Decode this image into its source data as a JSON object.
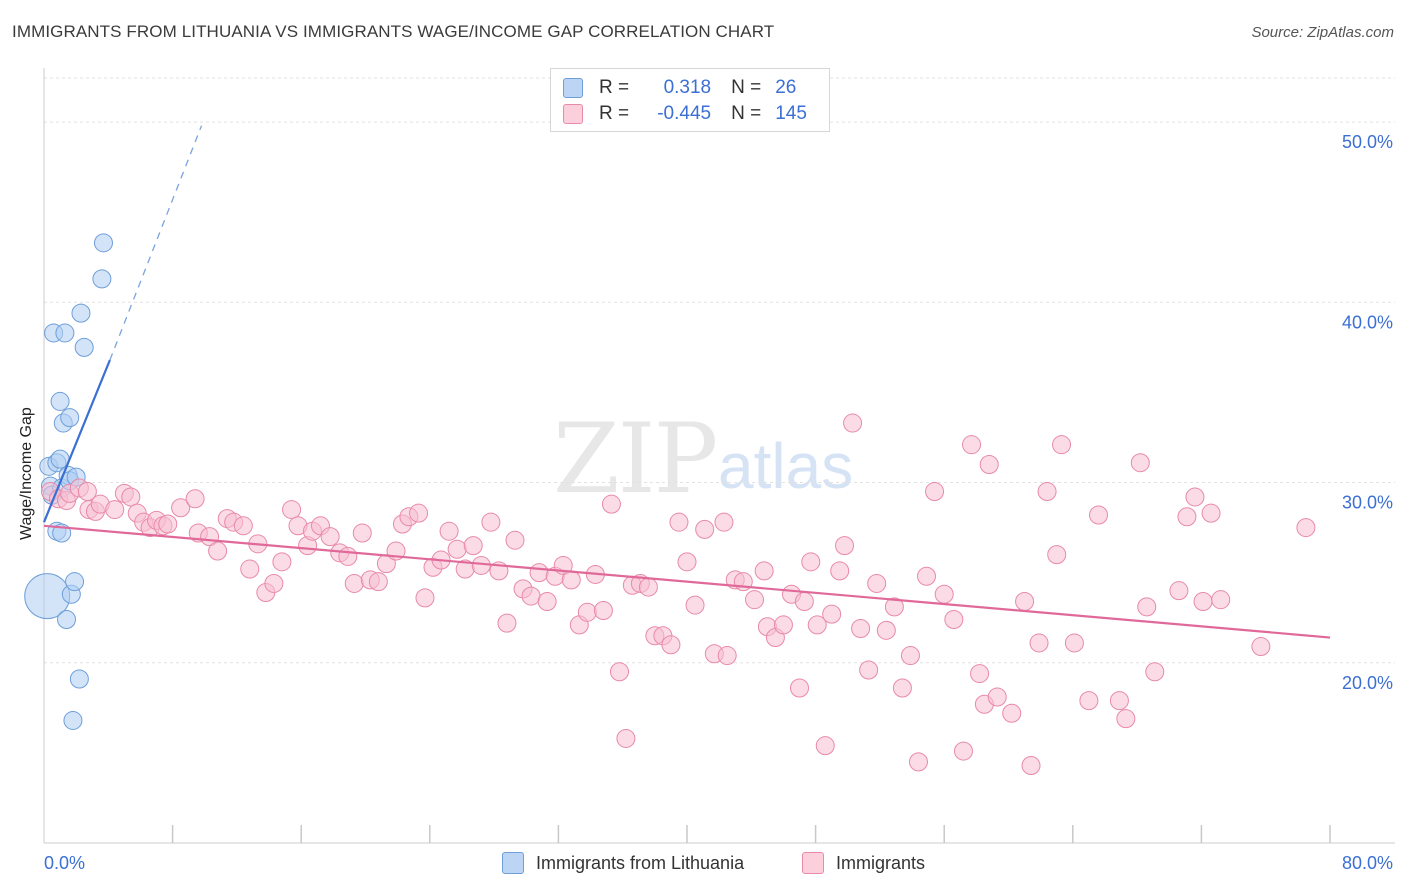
{
  "title": "IMMIGRANTS FROM LITHUANIA VS IMMIGRANTS WAGE/INCOME GAP CORRELATION CHART",
  "source": "Source: ZipAtlas.com",
  "watermark": {
    "zip": "ZIP",
    "atlas": "atlas"
  },
  "legend": {
    "r_label": "R =",
    "n_label": "N =",
    "series": [
      {
        "name": "Immigrants from Lithuania",
        "r": "0.318",
        "n": "26",
        "fill": "#aecdf3",
        "stroke": "#6e9fd9"
      },
      {
        "name": "Immigrants",
        "r": "-0.445",
        "n": "145",
        "fill": "#f8c0d1",
        "stroke": "#e88aa8"
      }
    ]
  },
  "chart_data": {
    "type": "scatter",
    "title": "IMMIGRANTS FROM LITHUANIA VS IMMIGRANTS WAGE/INCOME GAP CORRELATION CHART",
    "xlabel": "",
    "ylabel": "Wage/Income Gap",
    "xlim": [
      0,
      80
    ],
    "ylim": [
      10,
      53
    ],
    "x_tick_labels": [
      "0.0%",
      "80.0%"
    ],
    "y_ticks": [
      20,
      30,
      40,
      50
    ],
    "y_tick_labels": [
      "20.0%",
      "30.0%",
      "40.0%",
      "50.0%"
    ],
    "colors": {
      "blue": "#3b6fd4",
      "pink": "#e0699a",
      "axis_text": "#3b6fd4",
      "grid": "#e2e2e2"
    },
    "series": [
      {
        "name": "Immigrants from Lithuania",
        "color": "#6e9fd9",
        "fill": "#aecdf3",
        "points": [
          [
            0.2,
            23.7,
            2.5
          ],
          [
            0.3,
            30.9,
            1
          ],
          [
            0.4,
            29.8,
            1
          ],
          [
            0.5,
            29.3,
            1
          ],
          [
            0.6,
            38.3,
            1
          ],
          [
            0.8,
            31.1,
            1
          ],
          [
            0.8,
            27.3,
            1
          ],
          [
            1.0,
            34.5,
            1
          ],
          [
            1.0,
            31.3,
            1
          ],
          [
            1.1,
            27.2,
            1
          ],
          [
            1.1,
            29.7,
            1
          ],
          [
            1.2,
            33.3,
            1
          ],
          [
            1.3,
            38.3,
            1
          ],
          [
            1.4,
            22.4,
            1
          ],
          [
            1.5,
            30.4,
            1
          ],
          [
            1.6,
            33.6,
            1
          ],
          [
            1.6,
            30.1,
            1
          ],
          [
            1.7,
            23.8,
            1
          ],
          [
            1.8,
            16.8,
            1
          ],
          [
            1.9,
            24.5,
            1
          ],
          [
            2.0,
            30.3,
            1
          ],
          [
            2.2,
            19.1,
            1
          ],
          [
            2.3,
            39.4,
            1
          ],
          [
            2.5,
            37.5,
            1
          ],
          [
            3.6,
            41.3,
            1
          ],
          [
            3.7,
            43.3,
            1
          ]
        ],
        "trend": {
          "solid": [
            [
              0,
              27.8
            ],
            [
              4.1,
              36.8
            ]
          ],
          "dashed": [
            [
              4.1,
              36.8
            ],
            [
              9.8,
              49.8
            ]
          ]
        }
      },
      {
        "name": "Immigrants",
        "color": "#e88aa8",
        "fill": "#f8c0d1",
        "points": [
          [
            0.4,
            29.5,
            1
          ],
          [
            0.9,
            29.1,
            1
          ],
          [
            1.4,
            29.0,
            1
          ],
          [
            1.6,
            29.4,
            1
          ],
          [
            2.2,
            29.7,
            1
          ],
          [
            2.8,
            28.5,
            1
          ],
          [
            3.2,
            28.4,
            1
          ],
          [
            3.5,
            28.8,
            1
          ],
          [
            4.4,
            28.5,
            1
          ],
          [
            5.0,
            29.4,
            1
          ],
          [
            5.4,
            29.2,
            1
          ],
          [
            5.8,
            28.3,
            1
          ],
          [
            6.2,
            27.8,
            1
          ],
          [
            6.6,
            27.5,
            1
          ],
          [
            7.0,
            27.9,
            1
          ],
          [
            7.4,
            27.6,
            1
          ],
          [
            7.7,
            27.7,
            1
          ],
          [
            8.5,
            28.6,
            1
          ],
          [
            9.4,
            29.1,
            1
          ],
          [
            9.6,
            27.2,
            1
          ],
          [
            10.3,
            27.0,
            1
          ],
          [
            10.8,
            26.2,
            1
          ],
          [
            11.4,
            28.0,
            1
          ],
          [
            11.8,
            27.8,
            1
          ],
          [
            12.4,
            27.6,
            1
          ],
          [
            12.8,
            25.2,
            1
          ],
          [
            13.3,
            26.6,
            1
          ],
          [
            13.8,
            23.9,
            1
          ],
          [
            14.3,
            24.4,
            1
          ],
          [
            14.8,
            25.6,
            1
          ],
          [
            15.4,
            28.5,
            1
          ],
          [
            15.8,
            27.6,
            1
          ],
          [
            16.4,
            26.5,
            1
          ],
          [
            16.7,
            27.3,
            1
          ],
          [
            17.2,
            27.6,
            1
          ],
          [
            17.8,
            27.0,
            1
          ],
          [
            18.4,
            26.1,
            1
          ],
          [
            18.9,
            25.9,
            1
          ],
          [
            19.3,
            24.4,
            1
          ],
          [
            19.8,
            27.2,
            1
          ],
          [
            20.3,
            24.6,
            1
          ],
          [
            20.8,
            24.5,
            1
          ],
          [
            21.3,
            25.5,
            1
          ],
          [
            21.9,
            26.2,
            1
          ],
          [
            22.3,
            27.7,
            1
          ],
          [
            22.7,
            28.1,
            1
          ],
          [
            23.3,
            28.3,
            1
          ],
          [
            23.7,
            23.6,
            1
          ],
          [
            24.2,
            25.3,
            1
          ],
          [
            24.7,
            25.7,
            1
          ],
          [
            25.2,
            27.3,
            1
          ],
          [
            25.7,
            26.3,
            1
          ],
          [
            26.2,
            25.2,
            1
          ],
          [
            26.7,
            26.5,
            1
          ],
          [
            27.2,
            25.4,
            1
          ],
          [
            27.8,
            27.8,
            1
          ],
          [
            28.3,
            25.1,
            1
          ],
          [
            28.8,
            22.2,
            1
          ],
          [
            29.3,
            26.8,
            1
          ],
          [
            29.8,
            24.1,
            1
          ],
          [
            30.3,
            23.7,
            1
          ],
          [
            30.8,
            25.0,
            1
          ],
          [
            31.3,
            23.4,
            1
          ],
          [
            31.8,
            24.8,
            1
          ],
          [
            32.3,
            25.4,
            1
          ],
          [
            32.8,
            24.6,
            1
          ],
          [
            33.3,
            22.1,
            1
          ],
          [
            33.8,
            22.8,
            1
          ],
          [
            34.3,
            24.9,
            1
          ],
          [
            34.8,
            22.9,
            1
          ],
          [
            35.3,
            28.8,
            1
          ],
          [
            35.8,
            19.5,
            1
          ],
          [
            36.2,
            15.8,
            1
          ],
          [
            36.6,
            24.3,
            1
          ],
          [
            37.1,
            24.4,
            1
          ],
          [
            37.6,
            24.2,
            1
          ],
          [
            38.0,
            21.5,
            1
          ],
          [
            38.5,
            21.5,
            1
          ],
          [
            39.0,
            21.0,
            1
          ],
          [
            39.5,
            27.8,
            1
          ],
          [
            40.0,
            25.6,
            1
          ],
          [
            40.5,
            23.2,
            1
          ],
          [
            41.1,
            27.4,
            1
          ],
          [
            41.7,
            20.5,
            1
          ],
          [
            42.3,
            27.8,
            1
          ],
          [
            42.5,
            20.4,
            1
          ],
          [
            43.0,
            24.6,
            1
          ],
          [
            43.5,
            24.5,
            1
          ],
          [
            44.2,
            23.5,
            1
          ],
          [
            44.8,
            25.1,
            1
          ],
          [
            45.0,
            22.0,
            1
          ],
          [
            45.5,
            21.4,
            1
          ],
          [
            46.0,
            22.1,
            1
          ],
          [
            46.5,
            23.8,
            1
          ],
          [
            47.0,
            18.6,
            1
          ],
          [
            47.3,
            23.4,
            1
          ],
          [
            47.7,
            25.6,
            1
          ],
          [
            48.1,
            22.1,
            1
          ],
          [
            48.6,
            15.4,
            1
          ],
          [
            49.0,
            22.7,
            1
          ],
          [
            49.5,
            25.1,
            1
          ],
          [
            49.8,
            26.5,
            1
          ],
          [
            50.3,
            33.3,
            1
          ],
          [
            50.8,
            21.9,
            1
          ],
          [
            51.3,
            19.6,
            1
          ],
          [
            51.8,
            24.4,
            1
          ],
          [
            52.4,
            21.8,
            1
          ],
          [
            52.9,
            23.1,
            1
          ],
          [
            53.4,
            18.6,
            1
          ],
          [
            53.9,
            20.4,
            1
          ],
          [
            54.4,
            14.5,
            1
          ],
          [
            54.9,
            24.8,
            1
          ],
          [
            55.4,
            29.5,
            1
          ],
          [
            56.0,
            23.8,
            1
          ],
          [
            56.6,
            22.4,
            1
          ],
          [
            57.2,
            15.1,
            1
          ],
          [
            57.7,
            32.1,
            1
          ],
          [
            58.2,
            19.4,
            1
          ],
          [
            58.5,
            17.7,
            1
          ],
          [
            58.8,
            31.0,
            1
          ],
          [
            59.3,
            18.1,
            1
          ],
          [
            60.2,
            17.2,
            1
          ],
          [
            61.0,
            23.4,
            1
          ],
          [
            61.4,
            14.3,
            1
          ],
          [
            61.9,
            21.1,
            1
          ],
          [
            62.4,
            29.5,
            1
          ],
          [
            63.0,
            26.0,
            1
          ],
          [
            63.3,
            32.1,
            1
          ],
          [
            64.1,
            21.1,
            1
          ],
          [
            65.0,
            17.9,
            1
          ],
          [
            65.6,
            28.2,
            1
          ],
          [
            66.9,
            17.9,
            1
          ],
          [
            67.3,
            16.9,
            1
          ],
          [
            68.2,
            31.1,
            1
          ],
          [
            68.6,
            23.1,
            1
          ],
          [
            69.1,
            19.5,
            1
          ],
          [
            70.6,
            24.0,
            1
          ],
          [
            71.1,
            28.1,
            1
          ],
          [
            71.6,
            29.2,
            1
          ],
          [
            72.1,
            23.4,
            1
          ],
          [
            72.6,
            28.3,
            1
          ],
          [
            73.2,
            23.5,
            1
          ],
          [
            75.7,
            20.9,
            1
          ],
          [
            78.5,
            27.5,
            1
          ],
          [
            2.7,
            29.5,
            1
          ]
        ],
        "trend": {
          "solid": [
            [
              0,
              27.6
            ],
            [
              80,
              21.4
            ]
          ]
        }
      }
    ]
  }
}
